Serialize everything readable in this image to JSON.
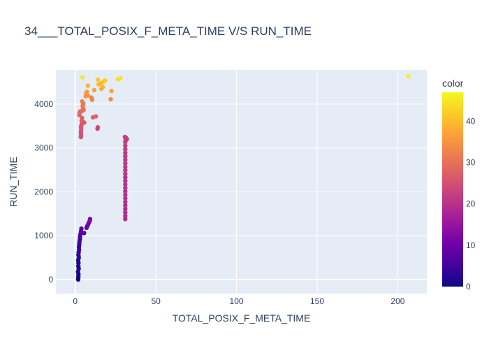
{
  "chart_data": {
    "type": "scatter",
    "title": "34___TOTAL_POSIX_F_META_TIME V/S RUN_TIME",
    "xlabel": "TOTAL_POSIX_F_META_TIME",
    "ylabel": "RUN_TIME",
    "xlim": [
      -12,
      218
    ],
    "ylim": [
      -320,
      4780
    ],
    "xticks": [
      0,
      50,
      100,
      150,
      200
    ],
    "yticks": [
      0,
      1000,
      2000,
      3000,
      4000
    ],
    "grid": true,
    "colorbar": {
      "title": "color",
      "min": 0,
      "max": 47,
      "ticks": [
        0,
        10,
        20,
        30,
        40
      ]
    },
    "colorscale": [
      "#0d0887",
      "#46039f",
      "#7201a8",
      "#9c179e",
      "#bd3786",
      "#d8576b",
      "#ed7953",
      "#fb9f3a",
      "#fdca26",
      "#f0f921"
    ],
    "points": [
      [
        1.8,
        0,
        0
      ],
      [
        1.9,
        60,
        0
      ],
      [
        2.0,
        120,
        1
      ],
      [
        1.7,
        180,
        1
      ],
      [
        2.1,
        250,
        1
      ],
      [
        1.9,
        310,
        2
      ],
      [
        2.0,
        380,
        2
      ],
      [
        1.8,
        440,
        2
      ],
      [
        2.2,
        500,
        3
      ],
      [
        2.0,
        560,
        3
      ],
      [
        2.1,
        620,
        3
      ],
      [
        2.4,
        680,
        4
      ],
      [
        2.3,
        740,
        4
      ],
      [
        2.5,
        800,
        4
      ],
      [
        2.6,
        860,
        5
      ],
      [
        2.9,
        920,
        5
      ],
      [
        3.0,
        980,
        6
      ],
      [
        3.3,
        1040,
        6
      ],
      [
        3.6,
        1100,
        7
      ],
      [
        3.8,
        1160,
        7
      ],
      [
        5.5,
        1060,
        8
      ],
      [
        7.0,
        1180,
        9
      ],
      [
        7.5,
        1220,
        10
      ],
      [
        8.0,
        1260,
        10
      ],
      [
        8.5,
        1300,
        11
      ],
      [
        9.0,
        1340,
        12
      ],
      [
        9.2,
        1380,
        12
      ],
      [
        31,
        1380,
        19
      ],
      [
        31,
        1450,
        19
      ],
      [
        31,
        1530,
        19
      ],
      [
        31,
        1610,
        19
      ],
      [
        31,
        1690,
        19
      ],
      [
        31,
        1770,
        19
      ],
      [
        31,
        1850,
        20
      ],
      [
        31,
        1930,
        20
      ],
      [
        31,
        2010,
        20
      ],
      [
        31,
        2090,
        20
      ],
      [
        31,
        2170,
        20
      ],
      [
        31,
        2250,
        20
      ],
      [
        31,
        2330,
        20
      ],
      [
        31,
        2410,
        21
      ],
      [
        31,
        2490,
        21
      ],
      [
        31,
        2570,
        21
      ],
      [
        31,
        2650,
        21
      ],
      [
        31,
        2730,
        21
      ],
      [
        31,
        2810,
        21
      ],
      [
        31,
        2890,
        21
      ],
      [
        31,
        2970,
        22
      ],
      [
        31,
        3050,
        22
      ],
      [
        31,
        3130,
        22
      ],
      [
        30.8,
        3250,
        22
      ],
      [
        31.5,
        3230,
        22
      ],
      [
        32,
        3200,
        22
      ],
      [
        31.2,
        3170,
        22
      ],
      [
        13.8,
        3440,
        24
      ],
      [
        14.0,
        3470,
        24
      ],
      [
        3.5,
        3250,
        25
      ],
      [
        3.6,
        3300,
        25
      ],
      [
        3.5,
        3360,
        25
      ],
      [
        3.7,
        3420,
        25
      ],
      [
        3.6,
        3470,
        26
      ],
      [
        3.8,
        3520,
        26
      ],
      [
        4.2,
        3560,
        26
      ],
      [
        5.5,
        3580,
        26
      ],
      [
        4.0,
        3620,
        27
      ],
      [
        4.3,
        3680,
        27
      ],
      [
        11,
        3700,
        27
      ],
      [
        12.8,
        3720,
        28
      ],
      [
        2.6,
        3750,
        28
      ],
      [
        2.7,
        3800,
        29
      ],
      [
        3.0,
        3830,
        29
      ],
      [
        4.5,
        3850,
        29
      ],
      [
        5.2,
        3870,
        30
      ],
      [
        4.8,
        3910,
        30
      ],
      [
        4.6,
        3960,
        31
      ],
      [
        5.0,
        4010,
        31
      ],
      [
        4.3,
        4060,
        32
      ],
      [
        10.5,
        4100,
        33
      ],
      [
        10.0,
        4150,
        33
      ],
      [
        22,
        4110,
        34
      ],
      [
        6.5,
        4180,
        35
      ],
      [
        7.8,
        4200,
        35
      ],
      [
        6.8,
        4250,
        36
      ],
      [
        7.2,
        4280,
        36
      ],
      [
        11.8,
        4320,
        37
      ],
      [
        22.5,
        4300,
        37
      ],
      [
        16.2,
        4350,
        38
      ],
      [
        17.0,
        4390,
        39
      ],
      [
        7.8,
        4420,
        39
      ],
      [
        14.5,
        4450,
        40
      ],
      [
        16.0,
        4480,
        40
      ],
      [
        17.5,
        4510,
        41
      ],
      [
        18.5,
        4540,
        42
      ],
      [
        14.0,
        4560,
        42
      ],
      [
        26.5,
        4570,
        44
      ],
      [
        28.0,
        4590,
        45
      ],
      [
        4.5,
        4610,
        46
      ],
      [
        206.5,
        4630,
        46
      ]
    ]
  }
}
